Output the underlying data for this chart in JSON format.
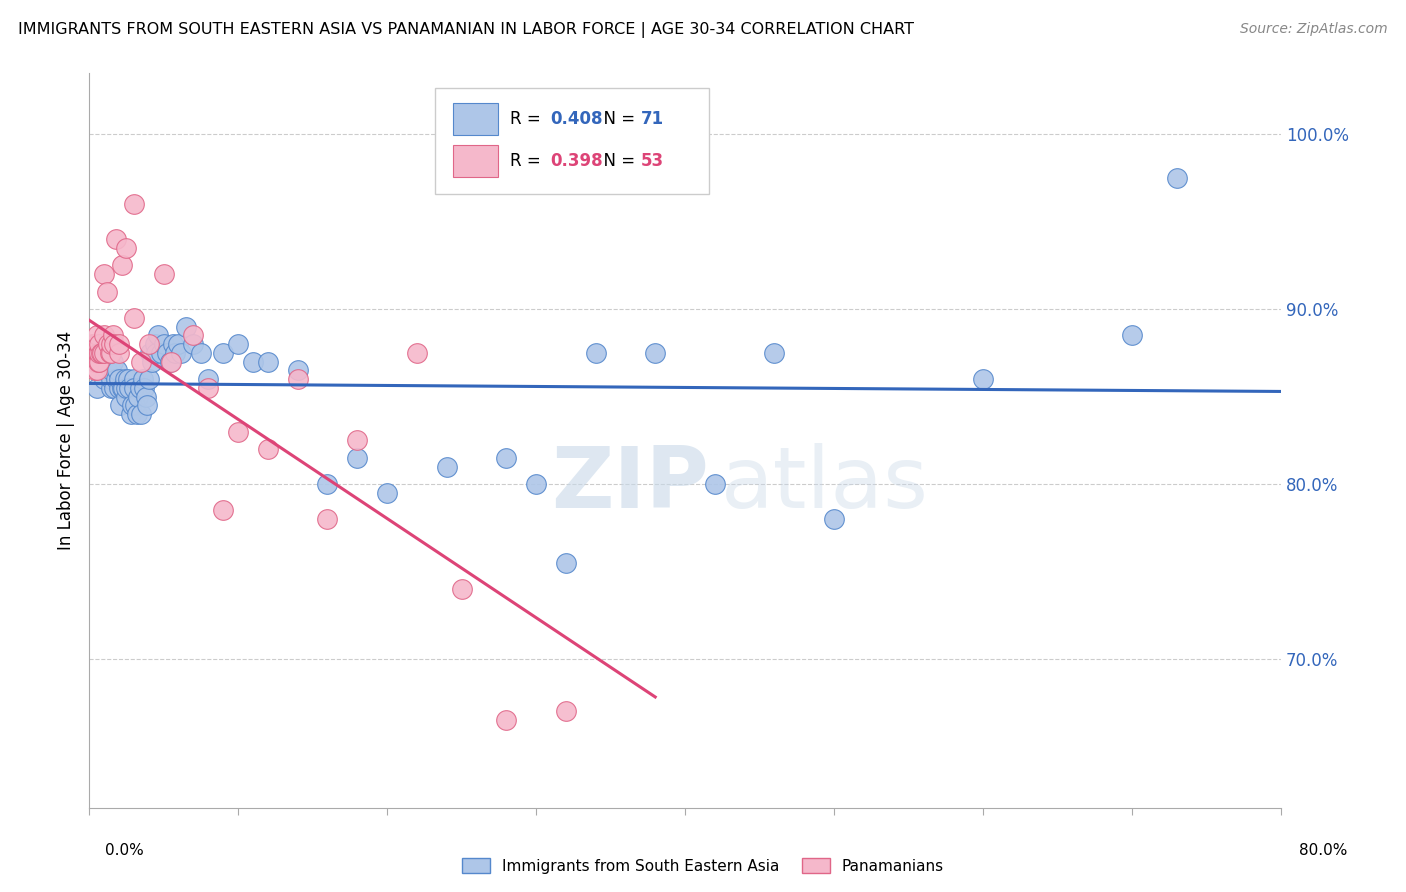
{
  "title": "IMMIGRANTS FROM SOUTH EASTERN ASIA VS PANAMANIAN IN LABOR FORCE | AGE 30-34 CORRELATION CHART",
  "source": "Source: ZipAtlas.com",
  "ylabel": "In Labor Force | Age 30-34",
  "y_tick_values": [
    0.7,
    0.8,
    0.9,
    1.0
  ],
  "y_tick_labels": [
    "70.0%",
    "80.0%",
    "90.0%",
    "100.0%"
  ],
  "x_range": [
    0.0,
    0.8
  ],
  "y_range": [
    0.615,
    1.035
  ],
  "blue_R": 0.408,
  "blue_N": 71,
  "pink_R": 0.398,
  "pink_N": 53,
  "blue_color": "#aec6e8",
  "blue_edge": "#5588cc",
  "pink_color": "#f5b8cb",
  "pink_edge": "#e06688",
  "blue_line_color": "#3366bb",
  "pink_line_color": "#dd4477",
  "watermark_zip": "ZIP",
  "watermark_atlas": "atlas",
  "blue_scatter_x": [
    0.005,
    0.01,
    0.012,
    0.015,
    0.015,
    0.015,
    0.016,
    0.017,
    0.018,
    0.019,
    0.02,
    0.02,
    0.021,
    0.022,
    0.023,
    0.024,
    0.025,
    0.025,
    0.026,
    0.027,
    0.028,
    0.029,
    0.03,
    0.03,
    0.031,
    0.032,
    0.033,
    0.034,
    0.035,
    0.036,
    0.037,
    0.038,
    0.039,
    0.04,
    0.041,
    0.042,
    0.044,
    0.045,
    0.046,
    0.048,
    0.05,
    0.052,
    0.054,
    0.056,
    0.058,
    0.06,
    0.062,
    0.065,
    0.07,
    0.075,
    0.08,
    0.09,
    0.1,
    0.11,
    0.12,
    0.14,
    0.16,
    0.18,
    0.2,
    0.24,
    0.28,
    0.3,
    0.32,
    0.34,
    0.38,
    0.42,
    0.46,
    0.5,
    0.6,
    0.7,
    0.73
  ],
  "blue_scatter_y": [
    0.855,
    0.86,
    0.865,
    0.855,
    0.86,
    0.865,
    0.87,
    0.855,
    0.86,
    0.865,
    0.855,
    0.86,
    0.845,
    0.855,
    0.855,
    0.86,
    0.85,
    0.855,
    0.86,
    0.855,
    0.84,
    0.845,
    0.86,
    0.855,
    0.845,
    0.84,
    0.85,
    0.855,
    0.84,
    0.86,
    0.855,
    0.85,
    0.845,
    0.86,
    0.875,
    0.87,
    0.88,
    0.875,
    0.885,
    0.875,
    0.88,
    0.875,
    0.87,
    0.88,
    0.875,
    0.88,
    0.875,
    0.89,
    0.88,
    0.875,
    0.86,
    0.875,
    0.88,
    0.87,
    0.87,
    0.865,
    0.8,
    0.815,
    0.795,
    0.81,
    0.815,
    0.8,
    0.755,
    0.875,
    0.875,
    0.8,
    0.875,
    0.78,
    0.86,
    0.885,
    0.975
  ],
  "pink_scatter_x": [
    0.002,
    0.002,
    0.003,
    0.003,
    0.003,
    0.004,
    0.004,
    0.004,
    0.004,
    0.005,
    0.005,
    0.005,
    0.005,
    0.006,
    0.006,
    0.007,
    0.007,
    0.007,
    0.008,
    0.009,
    0.01,
    0.01,
    0.01,
    0.012,
    0.013,
    0.014,
    0.015,
    0.015,
    0.016,
    0.017,
    0.018,
    0.02,
    0.02,
    0.022,
    0.025,
    0.03,
    0.03,
    0.035,
    0.04,
    0.05,
    0.055,
    0.07,
    0.08,
    0.09,
    0.1,
    0.12,
    0.14,
    0.16,
    0.18,
    0.22,
    0.25,
    0.28,
    0.32
  ],
  "pink_scatter_y": [
    0.875,
    0.88,
    0.87,
    0.875,
    0.88,
    0.865,
    0.87,
    0.875,
    0.88,
    0.865,
    0.875,
    0.88,
    0.885,
    0.87,
    0.875,
    0.87,
    0.875,
    0.88,
    0.875,
    0.875,
    0.875,
    0.885,
    0.92,
    0.91,
    0.88,
    0.875,
    0.875,
    0.88,
    0.885,
    0.88,
    0.94,
    0.875,
    0.88,
    0.925,
    0.935,
    0.895,
    0.96,
    0.87,
    0.88,
    0.92,
    0.87,
    0.885,
    0.855,
    0.785,
    0.83,
    0.82,
    0.86,
    0.78,
    0.825,
    0.875,
    0.74,
    0.665,
    0.67
  ]
}
